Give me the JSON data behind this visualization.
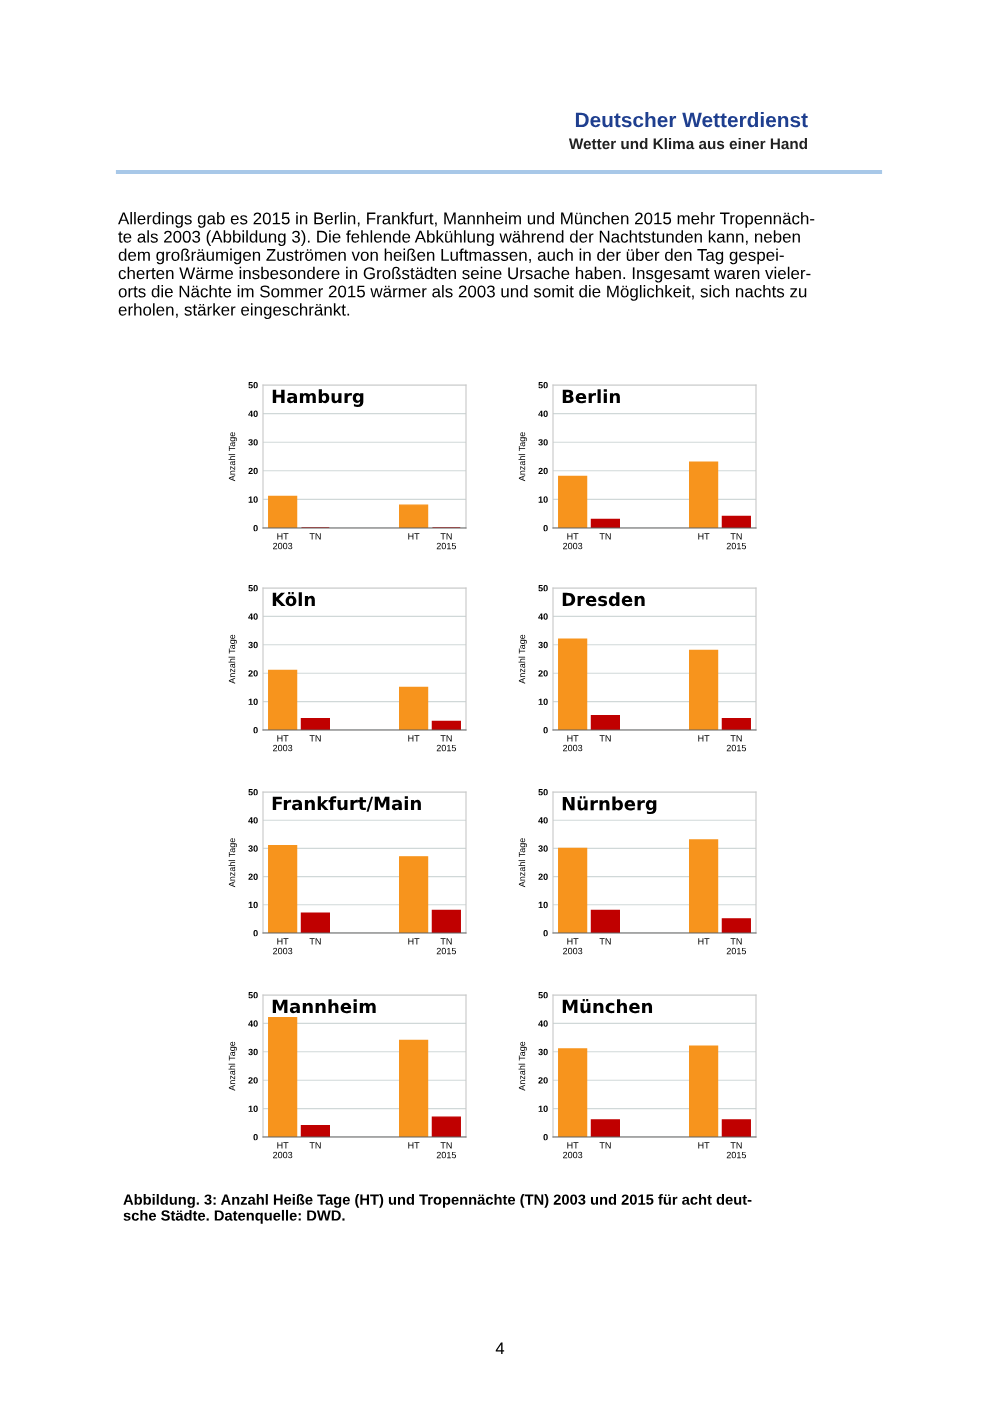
{
  "chart_data": [
    {
      "type": "bar",
      "title": "Hamburg",
      "ylabel": "Anzahl Tage",
      "categories": [
        "HT\n2003",
        "TN",
        null,
        null,
        "HT",
        "TN\n2015"
      ],
      "values": [
        11,
        0,
        null,
        null,
        8,
        0
      ],
      "colors": [
        "#f7941d",
        "#c00000",
        null,
        null,
        "#f7941d",
        "#c00000"
      ],
      "ylim": [
        0,
        50
      ],
      "yticks": [
        0,
        10,
        20,
        30,
        40,
        50
      ],
      "grid": "y",
      "annotations": [
        "Deutscher Wetterdienst",
        "Wetter und Klima aus einer Hand",
        "Allerdings gab es 2015 in Berlin, Frankfurt, Mannheim und München 2015 mehr Tropennäch-\nte als 2003 (Abbildung 3). Die fehlende Abkühlung während der Nachtstunden kann, neben\ndem großräumigen Zuströmen von heißen Luftmassen, auch in der über den Tag gespei-\ncherten Wärme insbesondere in Großstädten seine Ursache haben. Insgesamt waren vieler-\norts die Nächte im Sommer 2015 wärmer als 2003 und somit die Möglichkeit, sich nachts zu\nerholen, stärker eingeschränkt."
      ]
    },
    {
      "type": "bar",
      "title": "Berlin",
      "ylabel": "Anzahl Tage",
      "categories": [
        "HT\n2003",
        "TN",
        null,
        null,
        "HT",
        "TN\n2015"
      ],
      "values": [
        18,
        3,
        null,
        null,
        23,
        4
      ],
      "colors": [
        "#f7941d",
        "#c00000",
        null,
        null,
        "#f7941d",
        "#c00000"
      ],
      "ylim": [
        0,
        50
      ],
      "yticks": [
        0,
        10,
        20,
        30,
        40,
        50
      ],
      "grid": "y"
    },
    {
      "type": "bar",
      "title": "Köln",
      "ylabel": "Anzahl Tage",
      "categories": [
        "HT\n2003",
        "TN",
        null,
        null,
        "HT",
        "TN\n2015"
      ],
      "values": [
        21,
        4,
        null,
        null,
        15,
        3
      ],
      "colors": [
        "#f7941d",
        "#c00000",
        null,
        null,
        "#f7941d",
        "#c00000"
      ],
      "ylim": [
        0,
        50
      ],
      "yticks": [
        0,
        10,
        20,
        30,
        40,
        50
      ],
      "grid": "y"
    },
    {
      "type": "bar",
      "title": "Dresden",
      "ylabel": "Anzahl Tage",
      "categories": [
        "HT\n2003",
        "TN",
        null,
        null,
        "HT",
        "TN\n2015"
      ],
      "values": [
        32,
        5,
        null,
        null,
        28,
        4
      ],
      "colors": [
        "#f7941d",
        "#c00000",
        null,
        null,
        "#f7941d",
        "#c00000"
      ],
      "ylim": [
        0,
        50
      ],
      "yticks": [
        0,
        10,
        20,
        30,
        40,
        50
      ],
      "grid": "y"
    },
    {
      "type": "bar",
      "title": "Frankfurt/Main",
      "ylabel": "Anzahl Tage",
      "categories": [
        "HT\n2003",
        "TN",
        null,
        null,
        "HT",
        "TN\n2015"
      ],
      "values": [
        31,
        7,
        null,
        null,
        27,
        8
      ],
      "colors": [
        "#f7941d",
        "#c00000",
        null,
        null,
        "#f7941d",
        "#c00000"
      ],
      "ylim": [
        0,
        50
      ],
      "yticks": [
        0,
        10,
        20,
        30,
        40,
        50
      ],
      "grid": "y"
    },
    {
      "type": "bar",
      "title": "Nürnberg",
      "ylabel": "Anzahl Tage",
      "categories": [
        "HT\n2003",
        "TN",
        null,
        null,
        "HT",
        "TN\n2015"
      ],
      "values": [
        30,
        8,
        null,
        null,
        33,
        5
      ],
      "colors": [
        "#f7941d",
        "#c00000",
        null,
        null,
        "#f7941d",
        "#c00000"
      ],
      "ylim": [
        0,
        50
      ],
      "yticks": [
        0,
        10,
        20,
        30,
        40,
        50
      ],
      "grid": "y"
    },
    {
      "type": "bar",
      "title": "Mannheim",
      "ylabel": "Anzahl Tage",
      "categories": [
        "HT\n2003",
        "TN",
        null,
        null,
        "HT",
        "TN\n2015"
      ],
      "values": [
        42,
        4,
        null,
        null,
        34,
        7
      ],
      "colors": [
        "#f7941d",
        "#c00000",
        null,
        null,
        "#f7941d",
        "#c00000"
      ],
      "ylim": [
        0,
        50
      ],
      "yticks": [
        0,
        10,
        20,
        30,
        40,
        50
      ],
      "grid": "y"
    },
    {
      "type": "bar",
      "title": "München",
      "ylabel": "Anzahl Tage",
      "categories": [
        "HT\n2003",
        "TN",
        null,
        null,
        "HT",
        "TN\n2015"
      ],
      "values": [
        31,
        6,
        null,
        null,
        32,
        6
      ],
      "colors": [
        "#f7941d",
        "#c00000",
        null,
        null,
        "#f7941d",
        "#c00000"
      ],
      "ylim": [
        0,
        50
      ],
      "yticks": [
        0,
        10,
        20,
        30,
        40,
        50
      ],
      "grid": "y",
      "annotations": [
        "Abbildung. 3: Anzahl Heiße Tage (HT) und Tropennächte (TN) 2003 und 2015 für acht deut-\nsche Städte. Datenquelle: DWD.",
        "4"
      ]
    }
  ]
}
